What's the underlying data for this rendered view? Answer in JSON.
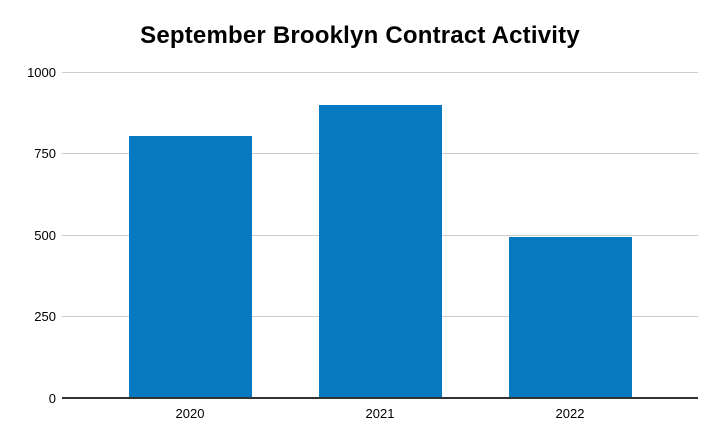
{
  "title": "September Brooklyn Contract Activity",
  "chart_data": {
    "type": "bar",
    "title": "September Brooklyn Contract Activity",
    "categories": [
      "2020",
      "2021",
      "2022"
    ],
    "values": [
      805,
      900,
      493
    ],
    "xlabel": "",
    "ylabel": "",
    "ylim": [
      0,
      1000
    ],
    "yticks": [
      0,
      250,
      500,
      750,
      1000
    ],
    "grid": true,
    "legend": false,
    "colors": {
      "bar": "#0779C1",
      "gridline": "#CCCCCC",
      "axis_line": "#333333",
      "text": "#000000",
      "background": "#FFFFFF"
    }
  }
}
